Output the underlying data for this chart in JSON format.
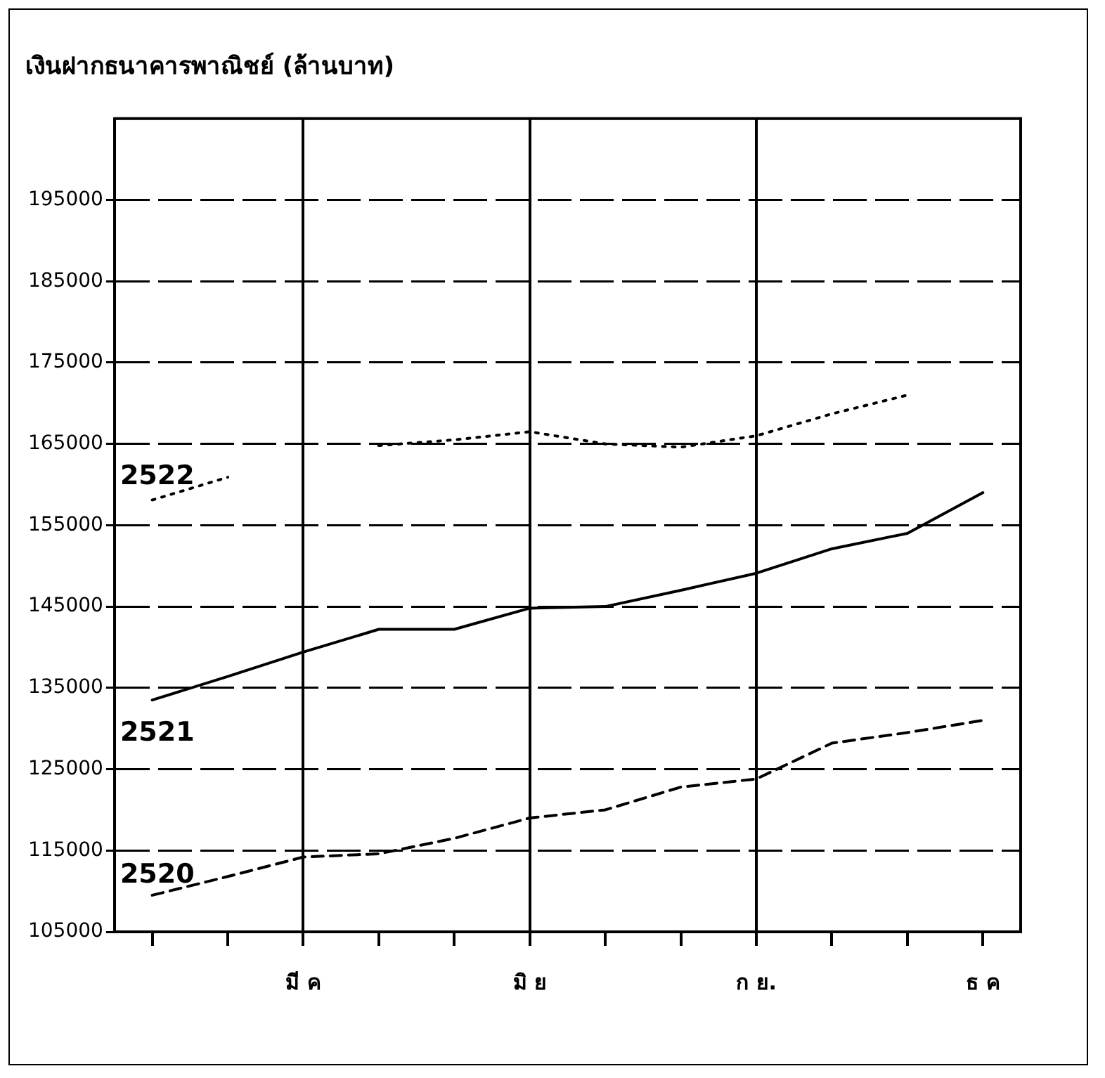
{
  "chart_data": {
    "type": "line",
    "title": "เงินฝากธนาคารพาณิชย์ (ล้านบาท)",
    "categories": [
      null,
      null,
      "มี ค",
      null,
      null,
      "มิ ย",
      null,
      null,
      "ก ย.",
      null,
      null,
      "ธ ค"
    ],
    "series": [
      {
        "name": "2522",
        "color": "#000000",
        "line_style": "dotted",
        "values": [
          158100,
          160900,
          null,
          164800,
          165500,
          166500,
          165000,
          164600,
          166000,
          168700,
          171000,
          null
        ]
      },
      {
        "name": "2521",
        "color": "#000000",
        "line_style": "solid",
        "values": [
          133500,
          136400,
          139400,
          142200,
          142200,
          144800,
          145000,
          147000,
          149100,
          152100,
          154000,
          159000
        ]
      },
      {
        "name": "2520",
        "color": "#000000",
        "line_style": "dashed",
        "values": [
          109500,
          111800,
          114200,
          114600,
          116500,
          119000,
          120000,
          122800,
          123800,
          128200,
          129500,
          131000
        ]
      }
    ],
    "ylim": [
      105000,
      205000
    ],
    "yticks": [
      105000,
      115000,
      125000,
      135000,
      145000,
      155000,
      165000,
      175000,
      185000,
      195000
    ],
    "grid": true,
    "legend": false,
    "marker": "none"
  }
}
